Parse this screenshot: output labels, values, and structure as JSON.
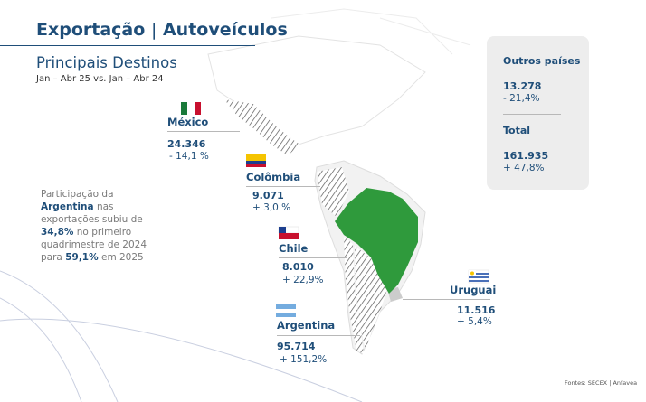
{
  "header": {
    "title": [
      "Exportação",
      "|",
      "Autoveículos"
    ],
    "subtitle": "Principais Destinos",
    "period": "Jan – Abr 25 vs. Jan – Abr 24"
  },
  "countries": [
    {
      "name": "México",
      "value": "24.346",
      "change": "- 14,1 %"
    },
    {
      "name": "Colômbia",
      "value": "9.071",
      "change": "+ 3,0 %"
    },
    {
      "name": "Chile",
      "value": "8.010",
      "change": "+ 22,9%"
    },
    {
      "name": "Argentina",
      "value": "95.714",
      "change": "+ 151,2%"
    },
    {
      "name": "Uruguai",
      "value": "11.516",
      "change": "+ 5,4%"
    }
  ],
  "summary": {
    "others_label": "Outros países",
    "others_value": "13.278",
    "others_change": "- 21,4%",
    "total_label": "Total",
    "total_value": "161.935",
    "total_change": "+ 47,8%"
  },
  "note": [
    "Participação da ",
    "Argentina",
    " nas exportações subiu de ",
    "34,8%",
    " no primeiro quadrimestre de 2024 para ",
    "59,1%",
    " em 2025"
  ],
  "source": "Fontes: SECEX | Anfavea"
}
